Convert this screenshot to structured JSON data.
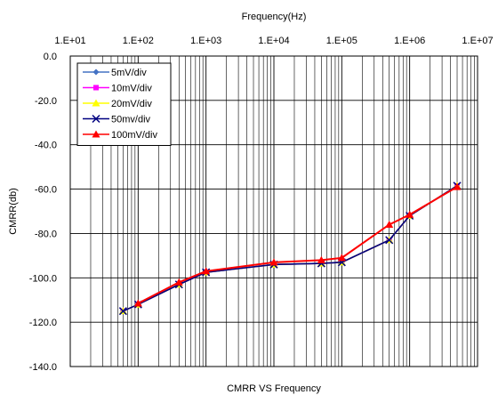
{
  "chart_data": {
    "type": "line",
    "xscale": "log",
    "x_axis_position": "top",
    "xlabel": "Frequency(Hz)",
    "ylabel": "CMRR(db)",
    "caption": "CMRR VS Frequency",
    "xlim": [
      10,
      10000000
    ],
    "ylim": [
      -140,
      0
    ],
    "x_tick_labels": [
      "1.E+01",
      "1.E+02",
      "1.E+03",
      "1.E+04",
      "1.E+05",
      "1.E+06",
      "1.E+07"
    ],
    "y_tick_labels": [
      "0.0",
      "-20.0",
      "-40.0",
      "-60.0",
      "-80.0",
      "-100.0",
      "-120.0",
      "-140.0"
    ],
    "grid": true,
    "legend_position": "top-left",
    "series": [
      {
        "name": "5mV/div",
        "color": "#4472C4",
        "marker": "diamond",
        "x": [
          60,
          100,
          400,
          1000,
          10000,
          50000,
          100000,
          500000,
          1000000,
          5000000
        ],
        "y": [
          -115,
          -112,
          -103,
          -97.5,
          -94,
          -93.5,
          -93,
          -83,
          -72,
          -58.5
        ]
      },
      {
        "name": "10mV/div",
        "color": "#FF00FF",
        "marker": "square",
        "x": [
          60,
          100,
          400,
          1000,
          10000,
          50000,
          100000,
          500000,
          1000000,
          5000000
        ],
        "y": [
          -115,
          -112,
          -103,
          -97.5,
          -94,
          -93.5,
          -93,
          -83,
          -72,
          -58.5
        ]
      },
      {
        "name": "20mV/div",
        "color": "#FFFF00",
        "marker": "triangle",
        "x": [
          60,
          100,
          400,
          1000,
          10000,
          50000,
          100000,
          500000,
          1000000,
          5000000
        ],
        "y": [
          -115,
          -112,
          -103,
          -97.5,
          -94,
          -93.5,
          -93,
          -83,
          -72,
          -58.5
        ]
      },
      {
        "name": "50mv/div",
        "color": "#000080",
        "marker": "x",
        "x": [
          60,
          100,
          400,
          1000,
          10000,
          50000,
          100000,
          500000,
          1000000,
          5000000
        ],
        "y": [
          -115,
          -112,
          -103,
          -97.5,
          -94,
          -93.5,
          -93,
          -83,
          -72,
          -58.5
        ]
      },
      {
        "name": "100mV/div",
        "color": "#FF0000",
        "marker": "triangle",
        "x": [
          100,
          400,
          1000,
          10000,
          50000,
          100000,
          500000,
          1000000,
          5000000
        ],
        "y": [
          -111.5,
          -102,
          -97,
          -93,
          -92,
          -91,
          -76,
          -71.5,
          -59
        ]
      }
    ]
  }
}
